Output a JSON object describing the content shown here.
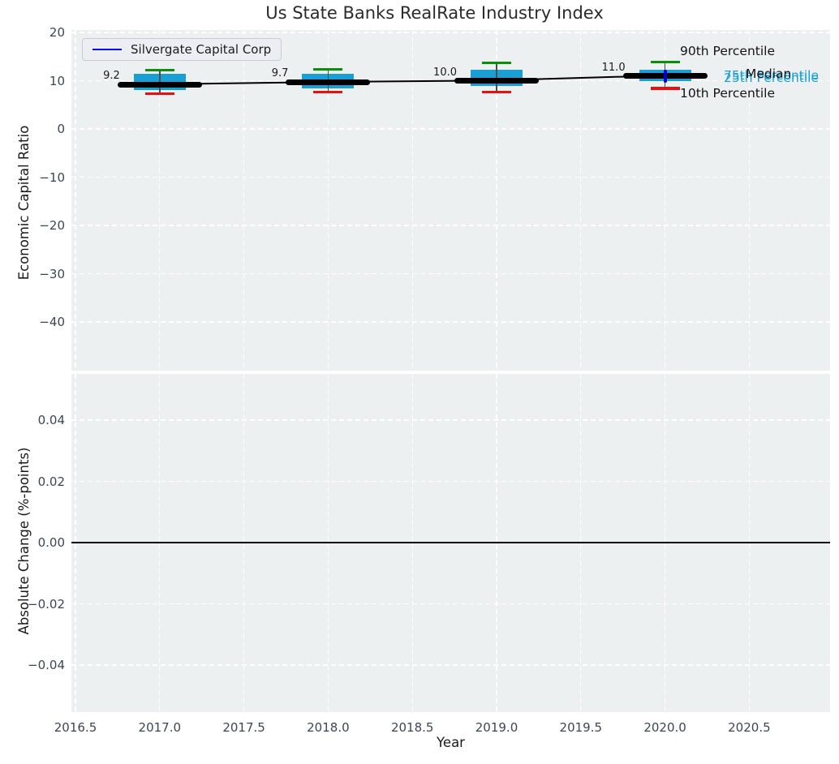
{
  "figure_title": "Us State Banks RealRate Industry Index",
  "legend": {
    "label": "Silvergate Capital Corp",
    "line_color": "#0a0af0"
  },
  "annotations": {
    "p90": {
      "label": "90th Percentile",
      "color": "#141414"
    },
    "p75": {
      "label": "75th Percentile",
      "color": "#1a9fd4"
    },
    "median": {
      "label": "Median",
      "color": "#141414"
    },
    "p25": {
      "label": "25th Percentile",
      "color": "#1a9fd4"
    },
    "p10": {
      "label": "10th Percentile",
      "color": "#141414"
    }
  },
  "colors": {
    "figure_bg": "#ffffff",
    "axes_bg": "#edf0f1",
    "grid": "#ffffff",
    "tick_label": "#3b4754",
    "box_fill": "#1a9fd4",
    "whisker": "#4d4d4d",
    "cap_top": "#0a8f0a",
    "cap_bottom": "#e01212",
    "median_line": "#000000",
    "company_line": "#0a0af0",
    "company_marker": "#0000cc",
    "zero_line": "#000000"
  },
  "chart_data": [
    {
      "type": "boxplot",
      "title": "Us State Banks RealRate Industry Index",
      "ylabel": "Economic Capital Ratio",
      "xlabel": "Year",
      "ylim": [
        -50.5,
        20.5
      ],
      "xlim": [
        2016.48,
        2020.98
      ],
      "grid": true,
      "yticks": [
        20,
        10,
        0,
        -10,
        -20,
        -30,
        -40
      ],
      "yticklabels": [
        "20",
        "10",
        "0",
        "−10",
        "−20",
        "−30",
        "−40"
      ],
      "xticks": [
        2016.5,
        2017.0,
        2017.5,
        2018.0,
        2018.5,
        2019.0,
        2019.5,
        2020.0,
        2020.5
      ],
      "xticklabels": [
        "2016.5",
        "2017.0",
        "2017.5",
        "2018.0",
        "2018.5",
        "2019.0",
        "2019.5",
        "2020.0",
        "2020.5"
      ],
      "legend_position": "upper left",
      "boxes": [
        {
          "x": 2017,
          "p10": 7.3,
          "q1": 8.0,
          "median": 9.2,
          "q3": 11.4,
          "p90": 12.2,
          "label": "9.2"
        },
        {
          "x": 2018,
          "p10": 7.6,
          "q1": 8.4,
          "median": 9.7,
          "q3": 11.5,
          "p90": 12.4,
          "label": "9.7"
        },
        {
          "x": 2019,
          "p10": 7.7,
          "q1": 8.9,
          "median": 10.0,
          "q3": 12.3,
          "p90": 13.7,
          "label": "10.0"
        },
        {
          "x": 2020,
          "p10": 8.4,
          "q1": 9.9,
          "median": 11.0,
          "q3": 12.2,
          "p90": 13.8,
          "label": "11.0"
        }
      ],
      "series": [
        {
          "name": "Industry Median",
          "color": "#000000",
          "x": [
            2017,
            2018,
            2019,
            2020
          ],
          "y": [
            9.2,
            9.7,
            10.0,
            11.0
          ]
        },
        {
          "name": "Silvergate Capital Corp",
          "color": "#0a0af0",
          "visible_point": {
            "x": 2020,
            "y": 11.0
          }
        }
      ]
    },
    {
      "type": "line",
      "ylabel": "Absolute Change (%-points)",
      "xlabel": "Year",
      "ylim": [
        -0.055,
        0.055
      ],
      "grid": true,
      "yticks": [
        0.04,
        0.02,
        0.0,
        -0.02,
        -0.04
      ],
      "yticklabels": [
        "0.04",
        "0.02",
        "0.00",
        "−0.02",
        "−0.04"
      ],
      "xticks": [
        2016.5,
        2017.0,
        2017.5,
        2018.0,
        2018.5,
        2019.0,
        2019.5,
        2020.0,
        2020.5
      ],
      "xticklabels": [
        "2016.5",
        "2017.0",
        "2017.5",
        "2018.0",
        "2018.5",
        "2019.0",
        "2019.5",
        "2020.0",
        "2020.5"
      ],
      "zero_line": 0.0,
      "series": []
    }
  ]
}
